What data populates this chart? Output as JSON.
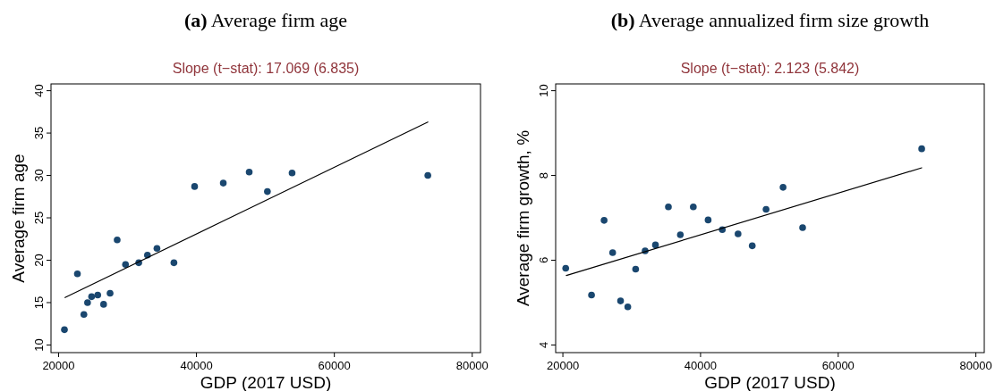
{
  "chart_data": [
    {
      "type": "scatter",
      "title": "(a) Average firm age",
      "subtitle": "Slope (t−stat): 17.069 (6.835)",
      "xlabel": "GDP (2017 USD)",
      "ylabel": "Average firm age",
      "xlim": [
        18900,
        81200
      ],
      "ylim": [
        9.1,
        40.8
      ],
      "xticks": [
        20000,
        40000,
        60000,
        80000
      ],
      "yticks": [
        10,
        15,
        20,
        25,
        30,
        35,
        40
      ],
      "grid": false,
      "series": [
        {
          "marker": "circle",
          "color": "#1a476f",
          "x": [
            20850,
            22730,
            23670,
            24200,
            24790,
            25680,
            26530,
            27470,
            28500,
            29710,
            31630,
            32890,
            34270,
            36730,
            39730,
            43890,
            47650,
            50290,
            53870,
            73560
          ],
          "values": [
            11.8,
            18.4,
            13.6,
            15.0,
            15.7,
            15.9,
            14.8,
            16.1,
            22.4,
            19.5,
            19.7,
            20.6,
            21.4,
            19.7,
            28.7,
            29.1,
            30.4,
            28.1,
            30.3,
            30.0
          ]
        },
        {
          "type": "line",
          "color": "#000000",
          "x": [
            20940,
            73560
          ],
          "values": [
            15.6,
            36.3
          ]
        }
      ]
    },
    {
      "type": "scatter",
      "title": "(b) Average annualized firm size growth",
      "subtitle": "Slope (t−stat): 2.123 (5.842)",
      "xlabel": "GDP (2017 USD)",
      "ylabel": "Average firm growth, %",
      "xlim": [
        18950,
        81220
      ],
      "ylim": [
        3.82,
        10.16
      ],
      "xticks": [
        20000,
        40000,
        60000,
        80000
      ],
      "yticks": [
        4,
        6,
        8,
        10
      ],
      "grid": false,
      "series": [
        {
          "marker": "circle",
          "color": "#1a476f",
          "x": [
            20410,
            24160,
            25990,
            27230,
            28380,
            29430,
            30570,
            31950,
            33450,
            35330,
            37070,
            38950,
            41100,
            43160,
            45450,
            47510,
            49520,
            51990,
            54830,
            72130
          ],
          "values": [
            5.81,
            5.18,
            6.94,
            6.18,
            5.04,
            4.9,
            5.79,
            6.22,
            6.36,
            7.26,
            6.6,
            7.26,
            6.95,
            6.72,
            6.62,
            6.34,
            7.2,
            7.72,
            6.77,
            8.63
          ]
        },
        {
          "type": "line",
          "color": "#000000",
          "x": [
            20500,
            72130
          ],
          "values": [
            5.64,
            8.18
          ]
        }
      ]
    }
  ]
}
